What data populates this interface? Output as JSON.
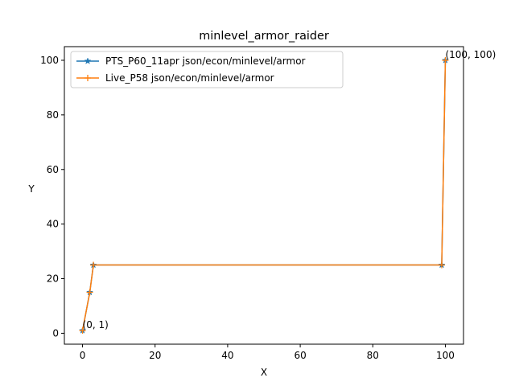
{
  "chart_data": {
    "type": "line",
    "title": "minlevel_armor_raider",
    "xlabel": "X",
    "ylabel": "Y",
    "xlim": [
      -5,
      105
    ],
    "ylim": [
      -4,
      105
    ],
    "xticks": [
      0,
      20,
      40,
      60,
      80,
      100
    ],
    "yticks": [
      0,
      20,
      40,
      60,
      80,
      100
    ],
    "grid": false,
    "legend_position": "top-left",
    "series": [
      {
        "name": "PTS_P60_11apr json/econ/minlevel/armor",
        "color": "#1f77b4",
        "marker": "star",
        "x": [
          0,
          2,
          3,
          99,
          100
        ],
        "y": [
          1,
          15,
          25,
          25,
          100
        ]
      },
      {
        "name": "Live_P58 json/econ/minlevel/armor",
        "color": "#ff7f0e",
        "marker": "plus",
        "x": [
          0,
          2,
          3,
          99,
          100
        ],
        "y": [
          1,
          15,
          25,
          25,
          100
        ]
      }
    ],
    "annotations": [
      {
        "text": "(0, 1)",
        "x": 0,
        "y": 1
      },
      {
        "text": "(100, 100)",
        "x": 100,
        "y": 100
      }
    ]
  }
}
